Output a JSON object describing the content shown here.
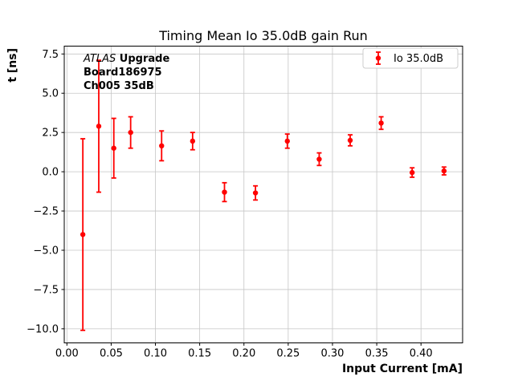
{
  "chart_data": {
    "type": "scatter",
    "title": "Timing Mean Io 35.0dB gain Run",
    "xlabel": "Input Current [mA]",
    "ylabel": "t [ns]",
    "grid": true,
    "grid_color": "#c6c6c6",
    "frame_color": "#000000",
    "xlim": [
      -0.003,
      0.447
    ],
    "ylim": [
      -10.9,
      8.0
    ],
    "xticks": [
      0.0,
      0.05,
      0.1,
      0.15,
      0.2,
      0.25,
      0.3,
      0.35,
      0.4
    ],
    "yticks": [
      7.5,
      5.0,
      2.5,
      0.0,
      -2.5,
      -5.0,
      -7.5,
      -10.0
    ],
    "annotation": {
      "experiment": "ATLAS",
      "line1": " Upgrade",
      "line2": "Board186975",
      "line3": "Ch005 35dB"
    },
    "legend": [
      {
        "label": "Io 35.0dB",
        "color": "#ff0000"
      }
    ],
    "legend_position": "upper-right",
    "series": [
      {
        "name": "Io 35.0dB",
        "color": "#ff0000",
        "marker": "circle",
        "x": [
          0.018,
          0.036,
          0.053,
          0.072,
          0.107,
          0.142,
          0.178,
          0.213,
          0.249,
          0.285,
          0.32,
          0.355,
          0.39,
          0.426
        ],
        "y": [
          -4.0,
          2.9,
          1.5,
          2.5,
          1.65,
          1.95,
          -1.3,
          -1.35,
          1.95,
          0.8,
          2.0,
          3.1,
          -0.05,
          0.05
        ],
        "yerr": [
          6.1,
          4.2,
          1.9,
          1.0,
          0.95,
          0.55,
          0.6,
          0.45,
          0.45,
          0.4,
          0.35,
          0.4,
          0.3,
          0.25
        ]
      }
    ]
  }
}
